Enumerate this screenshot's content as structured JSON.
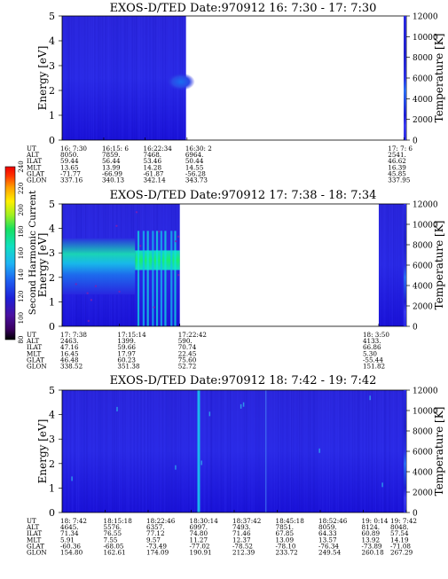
{
  "figure": {
    "row_labels": [
      "UT",
      "ALT",
      "ILAT",
      "MLT",
      "GLAT",
      "GLON"
    ],
    "colorbar": {
      "title": "Second Harmonic Current",
      "ticks": [
        "80",
        "100",
        "120",
        "140",
        "160",
        "180",
        "200",
        "220",
        "240"
      ]
    }
  },
  "chart_data": [
    {
      "type": "heatmap",
      "title": "EXOS-D/TED   Date:970912  16: 7:30 - 17: 7:30",
      "ylabel": "Energy [eV]",
      "y2label": "Temperature [K]",
      "ylim": [
        0,
        5
      ],
      "yticks": [
        "0",
        "1",
        "2",
        "3",
        "4",
        "5"
      ],
      "y2lim": [
        0,
        12000
      ],
      "y2ticks": [
        "0",
        "2000",
        "4000",
        "6000",
        "8000",
        "10000",
        "12000"
      ],
      "data_spans": [
        [
          0.0,
          0.36
        ],
        [
          0.993,
          1.0
        ]
      ],
      "columns": [
        {
          "pos": 0.0,
          "values": [
            "16: 7:30",
            "8050.",
            "59.44",
            "13.65",
            "-71.77",
            "337.16"
          ]
        },
        {
          "pos": 0.121,
          "values": [
            "16:15: 6",
            "7859.",
            "56.44",
            "13.99",
            "-66.99",
            "340.13"
          ]
        },
        {
          "pos": 0.241,
          "values": [
            "16:22:34",
            "7468.",
            "53.46",
            "14.28",
            "-61.87",
            "342.14"
          ]
        },
        {
          "pos": 0.363,
          "values": [
            "16:30: 2",
            "6964.",
            "50.44",
            "14.55",
            "-56.28",
            "343.73"
          ]
        },
        {
          "pos": 0.993,
          "values": [
            "17: 7: 6",
            "2541.",
            "46.62",
            "16.39",
            "45.85",
            "337.95"
          ]
        }
      ]
    },
    {
      "type": "heatmap",
      "title": "EXOS-D/TED   Date:970912  17: 7:38 - 18: 7:34",
      "ylabel": "Energy [eV]",
      "y2label": "Temperature [K]",
      "ylim": [
        0,
        5
      ],
      "yticks": [
        "0",
        "1",
        "2",
        "3",
        "4",
        "5"
      ],
      "y2lim": [
        0,
        12000
      ],
      "y2ticks": [
        "0",
        "2000",
        "4000",
        "6000",
        "8000",
        "10000",
        "12000"
      ],
      "data_spans": [
        [
          0.0,
          0.342
        ],
        [
          0.92,
          1.0
        ]
      ],
      "columns": [
        {
          "pos": 0.0,
          "values": [
            "17: 7:38",
            "2463.",
            "47.16",
            "16.45",
            "46.48",
            "338.52"
          ]
        },
        {
          "pos": 0.166,
          "values": [
            "17:15:14",
            "1399.",
            "59.66",
            "17.97",
            "60.23",
            "351.38"
          ]
        },
        {
          "pos": 0.342,
          "values": [
            "17:22:42",
            "590.",
            "70.74",
            "22.45",
            "75.60",
            "52.72"
          ]
        },
        {
          "pos": 0.92,
          "values": [
            "18: 3:50",
            "4133.",
            "66.86",
            "5.30",
            "-55.44",
            "151.82"
          ]
        }
      ]
    },
    {
      "type": "heatmap",
      "title": "EXOS-D/TED   Date:970912  18: 7:42 - 19: 7:42",
      "ylabel": "Energy [eV]",
      "y2label": "Temperature [K]",
      "ylim": [
        0,
        5
      ],
      "yticks": [
        "0",
        "1",
        "2",
        "3",
        "4",
        "5"
      ],
      "y2lim": [
        0,
        12000
      ],
      "y2ticks": [
        "0",
        "2000",
        "4000",
        "6000",
        "8000",
        "10000",
        "12000"
      ],
      "data_spans": [
        [
          0.0,
          1.0
        ]
      ],
      "columns": [
        {
          "pos": 0.0,
          "values": [
            "18: 7:42",
            "4645.",
            "71.34",
            "5.91",
            "-60.36",
            "154.80"
          ]
        },
        {
          "pos": 0.125,
          "values": [
            "18:15:18",
            "5576.",
            "76.55",
            "7.55",
            "-68.05",
            "162.61"
          ]
        },
        {
          "pos": 0.25,
          "values": [
            "18:22:46",
            "6357.",
            "77.12",
            "9.57",
            "-73.49",
            "174.09"
          ]
        },
        {
          "pos": 0.375,
          "values": [
            "18:30:14",
            "6997.",
            "74.80",
            "11.27",
            "-77.02",
            "190.91"
          ]
        },
        {
          "pos": 0.5,
          "values": [
            "18:37:42",
            "7493.",
            "71.46",
            "12.37",
            "-78.52",
            "212.39"
          ]
        },
        {
          "pos": 0.625,
          "values": [
            "18:45:18",
            "7851.",
            "67.85",
            "13.09",
            "-78.10",
            "233.72"
          ]
        },
        {
          "pos": 0.75,
          "values": [
            "18:52:46",
            "8059.",
            "64.33",
            "13.57",
            "-76.34",
            "249.54"
          ]
        },
        {
          "pos": 0.875,
          "values": [
            "19: 0:14",
            "8124.",
            "60.89",
            "13.92",
            "-73.89",
            "260.18"
          ]
        },
        {
          "pos": 1.0,
          "values": [
            "19: 7:42",
            "8048.",
            "57.54",
            "14.19",
            "-71.08",
            "267.29"
          ]
        }
      ]
    }
  ]
}
